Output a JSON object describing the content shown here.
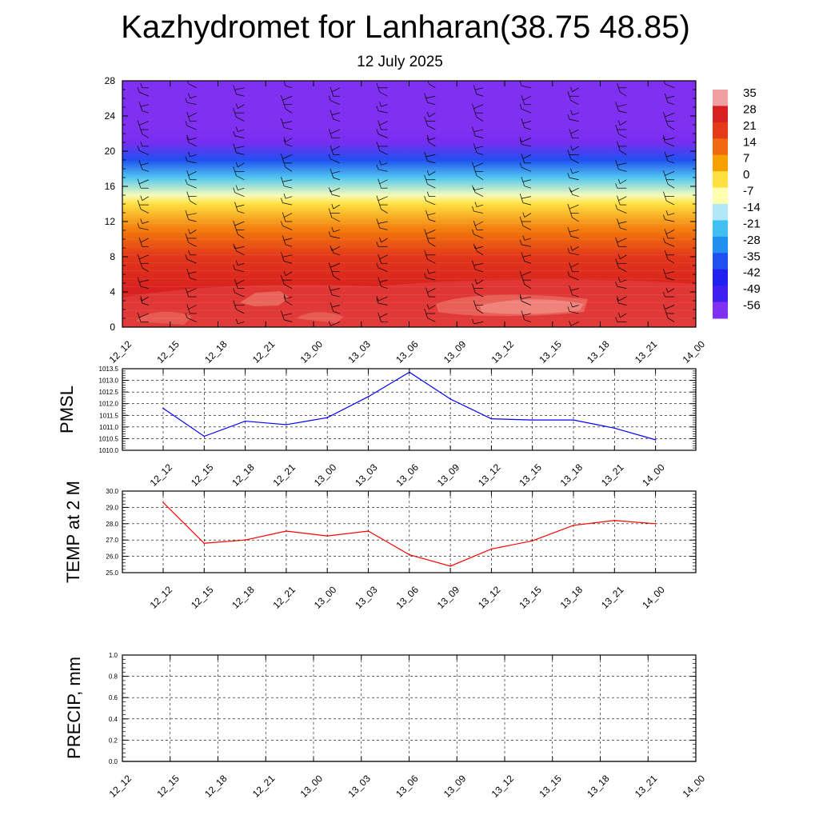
{
  "title": "Kazhydromet for Lanharan(38.75 48.85)",
  "subtitle": "12 July 2025",
  "chart_data": [
    {
      "type": "heatmap",
      "description_free": true,
      "x_ticks": [
        "12_12",
        "12_15",
        "12_18",
        "12_21",
        "13_00",
        "13_03",
        "13_06",
        "13_09",
        "13_12",
        "13_15",
        "13_18",
        "13_21",
        "14_00"
      ],
      "y_ticks": [
        0,
        4,
        8,
        12,
        16,
        20,
        24,
        28
      ],
      "ylim": [
        0,
        28
      ],
      "colorbar_labels": [
        "35",
        "28",
        "21",
        "14",
        "7",
        "0",
        "-7",
        "-14",
        "-21",
        "-28",
        "-35",
        "-42",
        "-49",
        "-56"
      ],
      "colorbar_colors": [
        "#f0a0a0",
        "#d82020",
        "#e43a1a",
        "#f06a10",
        "#f8a000",
        "#ffe040",
        "#ffffb0",
        "#b0e8f8",
        "#40c0f0",
        "#2090f0",
        "#2050f0",
        "#2020f0",
        "#4020f0",
        "#8030f0"
      ],
      "temperature_profile": [
        {
          "height": 0,
          "value": 30
        },
        {
          "height": 4,
          "value": 28
        },
        {
          "height": 8,
          "value": 22
        },
        {
          "height": 11,
          "value": 12
        },
        {
          "height": 14,
          "value": 0
        },
        {
          "height": 15,
          "value": -8
        },
        {
          "height": 17,
          "value": -20
        },
        {
          "height": 19,
          "value": -35
        },
        {
          "height": 21,
          "value": -55
        },
        {
          "height": 22.5,
          "value": -60
        },
        {
          "height": 28,
          "value": -58
        }
      ],
      "wind_barbs": "present"
    },
    {
      "type": "line",
      "ylabel": "PMSL",
      "x_ticks": [
        "12_12",
        "12_15",
        "12_18",
        "12_21",
        "13_00",
        "13_03",
        "13_06",
        "13_09",
        "13_12",
        "13_15",
        "13_18",
        "13_21",
        "14_00"
      ],
      "y_ticks": [
        "1010.0",
        "1010.5",
        "1011.0",
        "1011.5",
        "1012.0",
        "1012.5",
        "1013.0",
        "1013.5"
      ],
      "ylim": [
        1010.0,
        1013.5
      ],
      "series": [
        {
          "values": [
            1011.8,
            1010.6,
            1011.25,
            1011.1,
            1011.4,
            1012.3,
            1013.35,
            1012.2,
            1011.35,
            1011.3,
            1011.3,
            1010.95,
            1010.45
          ],
          "color": "#0000ff"
        }
      ]
    },
    {
      "type": "line",
      "ylabel": "TEMP at 2 M",
      "x_ticks": [
        "12_12",
        "12_15",
        "12_18",
        "12_21",
        "13_00",
        "13_03",
        "13_06",
        "13_09",
        "13_12",
        "13_15",
        "13_18",
        "13_21",
        "14_00"
      ],
      "y_ticks": [
        "25.0",
        "26.0",
        "27.0",
        "28.0",
        "29.0",
        "30.0"
      ],
      "ylim": [
        25.0,
        30.0
      ],
      "series": [
        {
          "values": [
            29.3,
            26.8,
            27.0,
            27.55,
            27.25,
            27.55,
            26.1,
            25.4,
            26.45,
            26.95,
            27.9,
            28.2,
            28.0
          ],
          "color": "#ff0000"
        }
      ]
    },
    {
      "type": "line",
      "ylabel": "PRECIP, mm",
      "x_ticks": [
        "12_12",
        "12_15",
        "12_18",
        "12_21",
        "13_00",
        "13_03",
        "13_06",
        "13_09",
        "13_12",
        "13_15",
        "13_18",
        "13_21",
        "14_00"
      ],
      "y_ticks": [
        "0.0",
        "0.2",
        "0.4",
        "0.6",
        "0.8",
        "1.0"
      ],
      "ylim": [
        0.0,
        1.0
      ],
      "series": [
        {
          "values": [
            0,
            0,
            0,
            0,
            0,
            0,
            0,
            0,
            0,
            0,
            0,
            0,
            0
          ],
          "color": "#008000"
        }
      ]
    }
  ]
}
